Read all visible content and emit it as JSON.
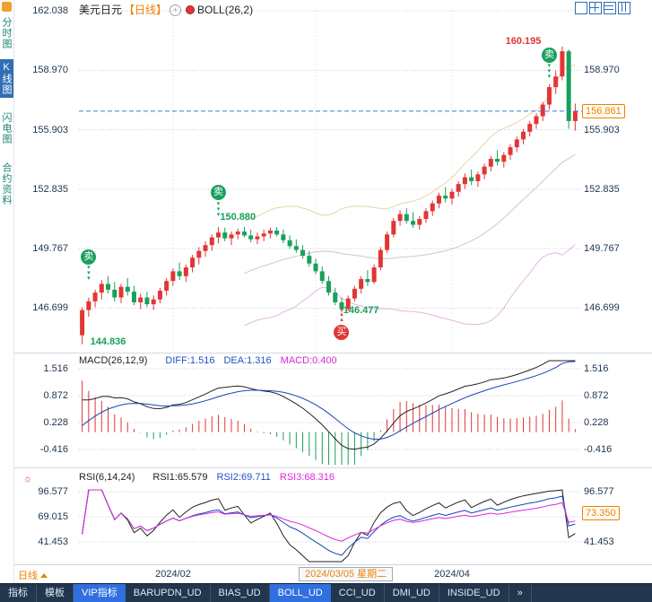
{
  "colors": {
    "up": "#e23535",
    "down": "#18a05c",
    "accent_orange": "#f08000",
    "grid": "#c9ced6",
    "axis_text": "#1d3450",
    "dashed_line": "#3a7bd5",
    "magenta": "#d928d9",
    "blue_label": "#2050c8",
    "toolbar_bg": "#22364e",
    "tab_active_bg": "#2f6fe0",
    "sidebar_text": "#1b8576",
    "sidebar_active_bg": "#2f6fb5"
  },
  "sidebar": {
    "items": [
      {
        "label": "分时图",
        "selected": false
      },
      {
        "label": "K线图",
        "selected": true
      },
      {
        "label": "闪电图",
        "selected": false
      },
      {
        "label": "合约资料",
        "selected": false
      }
    ]
  },
  "header": {
    "symbol": "美元日元",
    "period": "【日线】",
    "indicator": "BOLL(26,2)"
  },
  "main_chart": {
    "y_ticks": [
      162.038,
      158.97,
      155.903,
      152.835,
      149.767,
      146.699
    ],
    "current_price": "156.861"
  },
  "macd_panel": {
    "title": "MACD(26,12,9)",
    "labels": [
      {
        "text": "DIFF:1.516",
        "color": "#2050c8"
      },
      {
        "text": "DEA:1.316",
        "color": "#2050c8"
      },
      {
        "text": "MACD:0.400",
        "color": "#d928d9"
      }
    ],
    "y_ticks": [
      1.516,
      0.872,
      0.228,
      -0.416
    ]
  },
  "rsi_panel": {
    "title": "RSI(6,14,24)",
    "labels": [
      {
        "text": "RSI1:65.579",
        "color": "#222222"
      },
      {
        "text": "RSI2:69.711",
        "color": "#2050c8"
      },
      {
        "text": "RSI3:68.316",
        "color": "#d928d9"
      }
    ],
    "y_ticks": [
      96.577,
      69.015,
      41.453
    ],
    "right_value": "73.350"
  },
  "x_axis": {
    "period_button": "日线",
    "labels": [
      "2024/02",
      "2024/04"
    ],
    "highlight": "2024/03/05 星期二"
  },
  "toolbar": {
    "tabs": [
      {
        "label": "指标",
        "selected": false
      },
      {
        "label": "模板",
        "selected": false
      },
      {
        "label": "VIP指标",
        "selected": true
      },
      {
        "label": "BARUPDN_UD",
        "selected": false
      },
      {
        "label": "BIAS_UD",
        "selected": false
      },
      {
        "label": "BOLL_UD",
        "selected": true
      },
      {
        "label": "CCI_UD",
        "selected": false
      },
      {
        "label": "DMI_UD",
        "selected": false
      },
      {
        "label": "INSIDE_UD",
        "selected": false
      },
      {
        "label": "»",
        "selected": false
      }
    ]
  },
  "chart_data": {
    "type": "candlestick",
    "title": "美元日元 日线 (USD/JPY Daily)",
    "indicators": {
      "boll": "BOLL(26,2)",
      "macd": "MACD(26,12,9)",
      "rsi": "RSI(6,14,24)"
    },
    "y_ticks": [
      162.038,
      158.97,
      155.903,
      152.835,
      149.767,
      146.699
    ],
    "macd_ticks": [
      1.516,
      0.872,
      0.228,
      -0.416
    ],
    "rsi_ticks": [
      96.577,
      69.015,
      41.453
    ],
    "current_price": 156.861,
    "key_points": {
      "start_low": 144.836,
      "mid_peak": 150.88,
      "mid_low": 146.477,
      "top_high": 160.195
    },
    "candles": [
      [
        145.3,
        146.75,
        144.836,
        146.6
      ],
      [
        146.6,
        147.25,
        146.25,
        147.05
      ],
      [
        147.05,
        147.65,
        146.75,
        147.5
      ],
      [
        147.5,
        148.15,
        147.15,
        147.95
      ],
      [
        147.95,
        148.35,
        147.45,
        147.65
      ],
      [
        147.65,
        148.05,
        147.05,
        147.25
      ],
      [
        147.25,
        147.95,
        146.95,
        147.8
      ],
      [
        147.8,
        148.25,
        147.35,
        147.55
      ],
      [
        147.55,
        147.85,
        146.85,
        147.0
      ],
      [
        147.0,
        147.45,
        146.65,
        147.25
      ],
      [
        147.25,
        147.55,
        146.75,
        146.9
      ],
      [
        146.9,
        147.35,
        146.6,
        147.15
      ],
      [
        147.15,
        147.75,
        146.95,
        147.6
      ],
      [
        147.6,
        148.25,
        147.35,
        148.1
      ],
      [
        148.1,
        148.75,
        147.85,
        148.6
      ],
      [
        148.6,
        149.05,
        148.15,
        148.35
      ],
      [
        148.35,
        148.95,
        148.05,
        148.8
      ],
      [
        148.8,
        149.45,
        148.55,
        149.3
      ],
      [
        149.3,
        149.85,
        148.95,
        149.65
      ],
      [
        149.65,
        150.15,
        149.35,
        149.95
      ],
      [
        149.95,
        150.5,
        149.65,
        150.35
      ],
      [
        150.35,
        150.88,
        150.05,
        150.6
      ],
      [
        150.6,
        150.85,
        150.15,
        150.3
      ],
      [
        150.3,
        150.65,
        149.95,
        150.5
      ],
      [
        150.5,
        150.8,
        150.25,
        150.65
      ],
      [
        150.65,
        150.88,
        150.35,
        150.45
      ],
      [
        150.45,
        150.75,
        150.1,
        150.25
      ],
      [
        150.25,
        150.6,
        150.0,
        150.4
      ],
      [
        150.4,
        150.75,
        150.15,
        150.55
      ],
      [
        150.55,
        150.85,
        150.3,
        150.7
      ],
      [
        150.7,
        150.88,
        150.4,
        150.5
      ],
      [
        150.5,
        150.75,
        150.05,
        150.2
      ],
      [
        150.2,
        150.45,
        149.75,
        149.9
      ],
      [
        149.9,
        150.25,
        149.55,
        149.7
      ],
      [
        149.7,
        149.95,
        149.25,
        149.4
      ],
      [
        149.4,
        149.65,
        148.85,
        149.0
      ],
      [
        149.0,
        149.25,
        148.45,
        148.6
      ],
      [
        148.6,
        148.85,
        147.95,
        148.1
      ],
      [
        148.1,
        148.35,
        147.35,
        147.5
      ],
      [
        147.5,
        147.75,
        146.85,
        147.0
      ],
      [
        147.0,
        147.25,
        146.477,
        146.65
      ],
      [
        146.65,
        147.35,
        146.55,
        147.2
      ],
      [
        147.2,
        147.85,
        147.05,
        147.7
      ],
      [
        147.7,
        148.35,
        147.45,
        148.2
      ],
      [
        148.2,
        148.65,
        147.85,
        148.05
      ],
      [
        148.05,
        148.95,
        147.95,
        148.8
      ],
      [
        148.8,
        149.85,
        148.65,
        149.7
      ],
      [
        149.7,
        150.65,
        149.55,
        150.5
      ],
      [
        150.5,
        151.35,
        150.35,
        151.2
      ],
      [
        151.2,
        151.75,
        150.95,
        151.55
      ],
      [
        151.55,
        151.85,
        151.05,
        151.2
      ],
      [
        151.2,
        151.65,
        150.85,
        151.0
      ],
      [
        151.0,
        151.45,
        150.75,
        151.3
      ],
      [
        151.3,
        151.85,
        151.1,
        151.7
      ],
      [
        151.7,
        152.25,
        151.45,
        152.1
      ],
      [
        152.1,
        152.65,
        151.85,
        152.5
      ],
      [
        152.5,
        152.95,
        152.15,
        152.35
      ],
      [
        152.35,
        152.85,
        152.05,
        152.7
      ],
      [
        152.7,
        153.25,
        152.45,
        153.1
      ],
      [
        153.1,
        153.65,
        152.85,
        153.45
      ],
      [
        153.45,
        153.85,
        153.05,
        153.25
      ],
      [
        153.25,
        153.75,
        152.95,
        153.6
      ],
      [
        153.6,
        154.15,
        153.35,
        154.0
      ],
      [
        154.0,
        154.55,
        153.75,
        154.4
      ],
      [
        154.4,
        154.85,
        154.05,
        154.25
      ],
      [
        154.25,
        154.75,
        153.95,
        154.6
      ],
      [
        154.6,
        155.15,
        154.35,
        155.0
      ],
      [
        155.0,
        155.55,
        154.75,
        155.4
      ],
      [
        155.4,
        155.95,
        155.15,
        155.8
      ],
      [
        155.8,
        156.35,
        155.55,
        156.2
      ],
      [
        156.2,
        156.75,
        155.95,
        156.6
      ],
      [
        156.6,
        157.35,
        156.35,
        157.2
      ],
      [
        157.2,
        158.25,
        156.95,
        158.1
      ],
      [
        158.1,
        158.95,
        157.75,
        158.65
      ],
      [
        158.65,
        160.195,
        158.45,
        159.95
      ],
      [
        159.95,
        160.05,
        155.95,
        156.35
      ],
      [
        156.35,
        157.25,
        155.85,
        156.861
      ]
    ],
    "markers": [
      {
        "type": "sell",
        "label": "卖",
        "index": 1,
        "price": 149.35
      },
      {
        "type": "sell",
        "label": "卖",
        "index": 21,
        "price": 152.65
      },
      {
        "type": "buy",
        "label": "买",
        "index": 40,
        "price": 145.45
      },
      {
        "type": "sell",
        "label": "卖",
        "index": 72,
        "price": 159.75
      }
    ],
    "annotations": [
      {
        "text": "144.836",
        "index": 4,
        "price": 144.98,
        "color": "#18a05c"
      },
      {
        "text": "150.880",
        "index": 24,
        "price": 151.38,
        "color": "#18a05c"
      },
      {
        "text": "146.477",
        "index": 43,
        "price": 146.6,
        "color": "#18a05c"
      },
      {
        "text": "160.195",
        "index": 68,
        "price": 160.48,
        "color": "#e23535"
      }
    ]
  }
}
